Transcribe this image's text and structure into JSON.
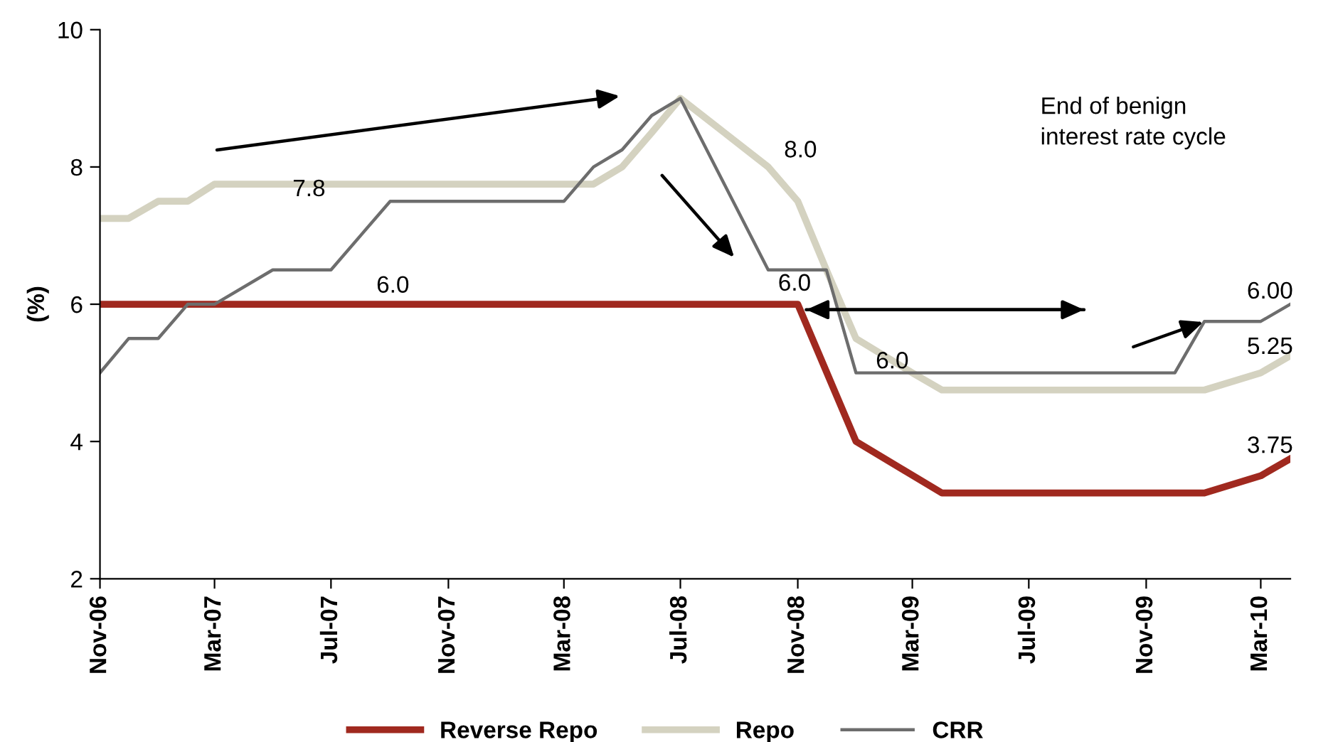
{
  "chart_data": {
    "type": "line",
    "ylabel": "(%)",
    "ylim": [
      2,
      10
    ],
    "yticks": [
      2,
      4,
      6,
      8,
      10
    ],
    "xlim": [
      "2006-11",
      "2010-04"
    ],
    "xticks": [
      {
        "value": "2006-11",
        "label": "Nov-06"
      },
      {
        "value": "2007-03",
        "label": "Mar-07"
      },
      {
        "value": "2007-07",
        "label": "Jul-07"
      },
      {
        "value": "2007-11",
        "label": "Nov-07"
      },
      {
        "value": "2008-03",
        "label": "Mar-08"
      },
      {
        "value": "2008-07",
        "label": "Jul-08"
      },
      {
        "value": "2008-11",
        "label": "Nov-08"
      },
      {
        "value": "2009-03",
        "label": "Mar-09"
      },
      {
        "value": "2009-07",
        "label": "Jul-09"
      },
      {
        "value": "2009-11",
        "label": "Nov-09"
      },
      {
        "value": "2010-03",
        "label": "Mar-10"
      }
    ],
    "grid": false,
    "legend": "bottom",
    "marker": "none",
    "line_style": "solid",
    "series": [
      {
        "name": "Reverse Repo",
        "color": "#a0291f",
        "x": [
          "2006-11",
          "2008-11",
          "2009-01",
          "2009-04",
          "2010-01",
          "2010-03",
          "2010-04"
        ],
        "values": [
          6.0,
          6.0,
          4.0,
          3.25,
          3.25,
          3.5,
          3.75
        ]
      },
      {
        "name": "Repo",
        "color": "#d4d2c0",
        "x": [
          "2006-11",
          "2006-12",
          "2007-01",
          "2007-02",
          "2007-03",
          "2008-04",
          "2008-05",
          "2008-06",
          "2008-07",
          "2008-10",
          "2008-11",
          "2008-12",
          "2009-01",
          "2009-03",
          "2009-04",
          "2010-01",
          "2010-03",
          "2010-04"
        ],
        "values": [
          7.25,
          7.25,
          7.5,
          7.5,
          7.75,
          7.75,
          8.0,
          8.5,
          9.0,
          8.0,
          7.5,
          6.5,
          5.5,
          5.0,
          4.75,
          4.75,
          5.0,
          5.25
        ]
      },
      {
        "name": "CRR",
        "color": "#6d6d6d",
        "x": [
          "2006-11",
          "2006-12",
          "2007-01",
          "2007-02",
          "2007-03",
          "2007-05",
          "2007-07",
          "2007-09",
          "2008-03",
          "2008-04",
          "2008-05",
          "2008-06",
          "2008-07",
          "2008-10",
          "2008-12",
          "2009-01",
          "2009-12",
          "2010-01",
          "2010-03",
          "2010-04"
        ],
        "values": [
          5.0,
          5.5,
          5.5,
          6.0,
          6.0,
          6.5,
          6.5,
          7.5,
          7.5,
          8.0,
          8.25,
          8.75,
          9.0,
          6.5,
          6.5,
          5.0,
          5.0,
          5.75,
          5.75,
          6.0
        ]
      }
    ],
    "annotations": [
      {
        "text": "7.8",
        "x": "2007-05",
        "y": 7.75
      },
      {
        "text": "6.0",
        "x": "2007-08",
        "y": 6.0
      },
      {
        "text": "8.0",
        "x": "2008-10",
        "y": 8.0
      },
      {
        "text": "6.0",
        "x": "2008-11",
        "y": 6.0
      },
      {
        "text": "6.0",
        "x": "2009-01",
        "y": 5.5
      },
      {
        "text": "6.00",
        "x": "2010-04",
        "y": 6.0
      },
      {
        "text": "5.25",
        "x": "2010-04",
        "y": 5.25
      },
      {
        "text": "3.75",
        "x": "2010-04",
        "y": 3.75
      },
      "End of benign\ninterest rate cycle"
    ]
  }
}
